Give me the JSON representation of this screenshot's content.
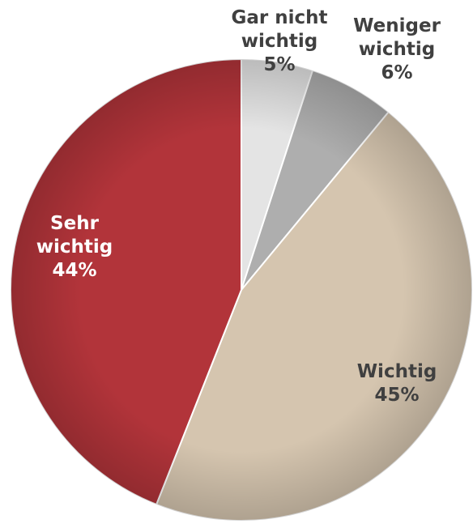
{
  "chart_data": {
    "type": "pie",
    "categories": [
      "Gar nicht wichtig",
      "Weniger wichtig",
      "Wichtig",
      "Sehr wichtig"
    ],
    "values": [
      5,
      6,
      45,
      44
    ],
    "value_labels": [
      "5%",
      "6%",
      "45%",
      "44%"
    ],
    "colors": [
      "#e4e4e4",
      "#aeaeae",
      "#d5c5af",
      "#b2343a"
    ]
  }
}
